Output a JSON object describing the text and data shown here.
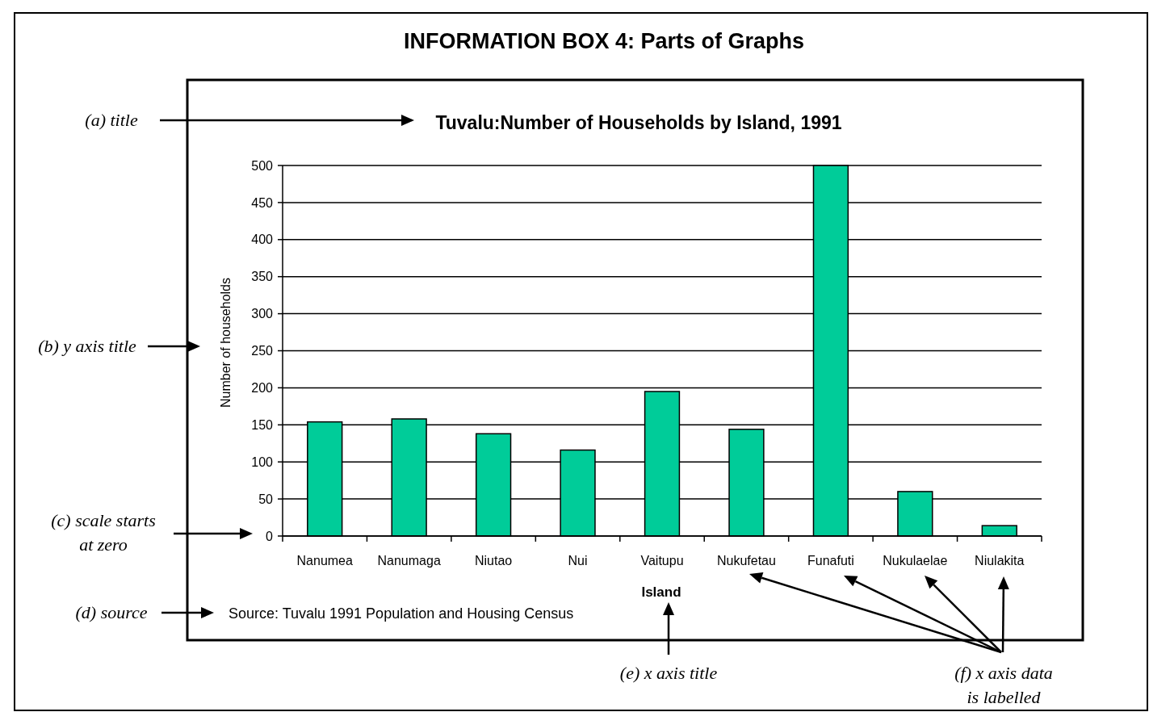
{
  "chart_data": {
    "type": "bar",
    "title": "INFORMATION BOX 4: Parts of Graphs",
    "subtitle": "Tuvalu:Number of Households by Island, 1991",
    "xlabel": "Island",
    "ylabel": "Number of households",
    "categories": [
      "Nanumea",
      "Nanumaga",
      "Niutao",
      "Nui",
      "Vaitupu",
      "Nukufetau",
      "Funafuti",
      "Nukulaelae",
      "Niulakita"
    ],
    "values": [
      154,
      158,
      138,
      116,
      195,
      144,
      500,
      60,
      14
    ],
    "color": "#00cc99",
    "ylim": [
      0,
      500
    ],
    "yticks": [
      0,
      50,
      100,
      150,
      200,
      250,
      300,
      350,
      400,
      450,
      500
    ],
    "grid": "y",
    "annotations": [
      "(a) title",
      "(b) y axis title",
      "(c) scale starts\nat zero",
      "(d) source",
      "Source: Tuvalu 1991 Population and Housing Census",
      "(e) x axis title",
      "(f) x axis data\nis labelled"
    ]
  }
}
